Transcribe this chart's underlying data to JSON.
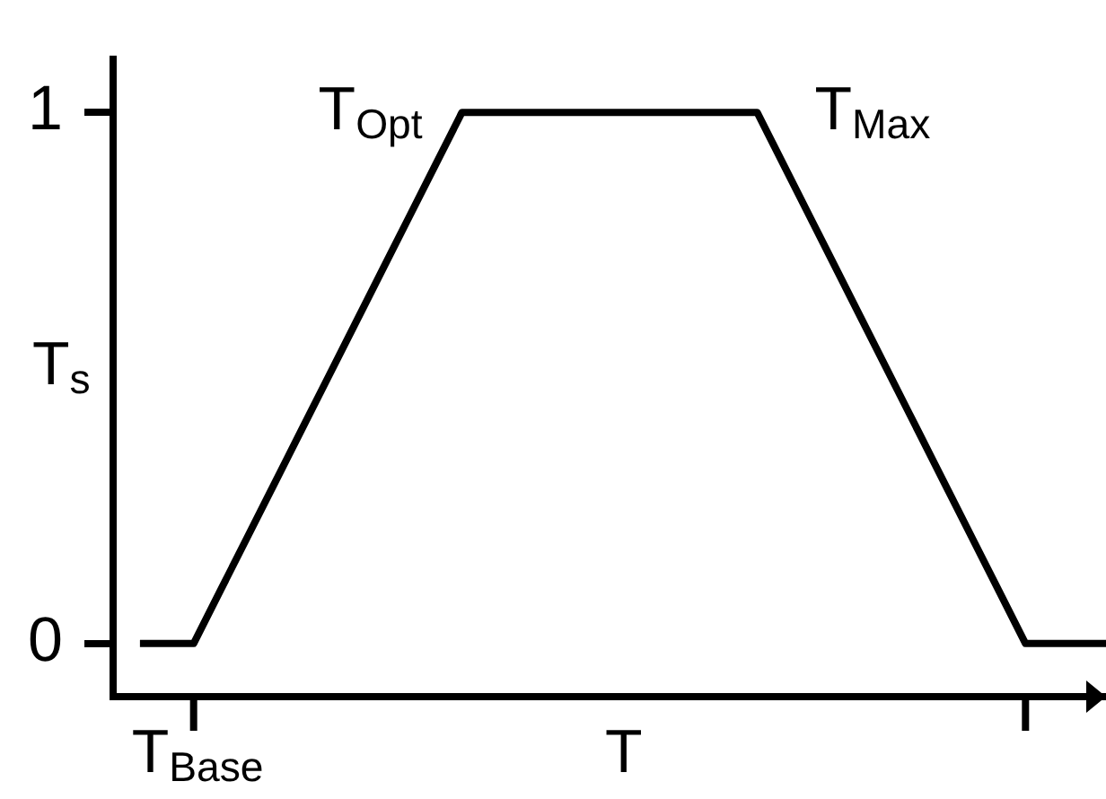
{
  "chart_data": {
    "type": "line",
    "xlabel": "T",
    "ylabel": "T$_{s}$",
    "categories": [
      null,
      null,
      null,
      "T$_{Base}$",
      null,
      null,
      null,
      null,
      null,
      null,
      null,
      null,
      null,
      null,
      null,
      null,
      null,
      null,
      null,
      null,
      null,
      null,
      null,
      null,
      null,
      null,
      null,
      null,
      null,
      null,
      null,
      null,
      null,
      null,
      null,
      null,
      null,
      null
    ],
    "values": [
      null,
      0,
      0,
      0,
      0.1,
      0.2,
      0.3,
      0.4,
      0.5,
      0.6,
      0.7,
      0.8,
      0.9,
      1,
      1,
      1,
      1,
      1,
      1,
      1,
      1,
      1,
      1,
      1,
      1,
      0.9,
      0.8,
      0.7,
      0.6,
      0.5,
      0.4,
      0.3,
      0.2,
      0.1,
      0,
      0,
      0,
      0
    ],
    "color": "#000000",
    "ylim": [
      -0.1,
      1.1
    ],
    "yticks": [
      0,
      1
    ],
    "annotations": [
      "T$_{Opt}$",
      "T$_{Max}$"
    ],
    "grid": false,
    "legend": false,
    "marker": "none",
    "line_style": "solid"
  }
}
